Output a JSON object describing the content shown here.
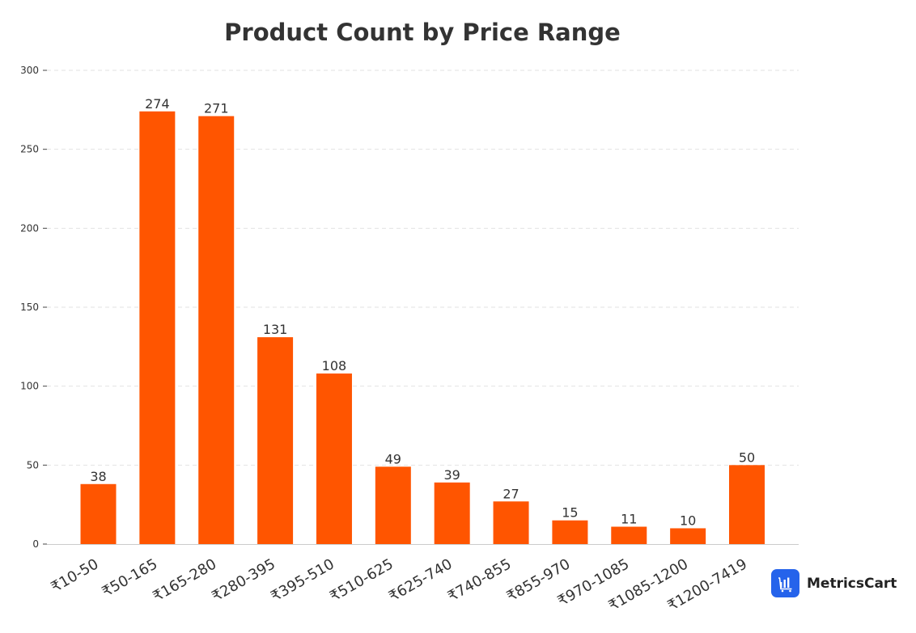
{
  "chart_data": {
    "type": "bar",
    "title": "Product Count by Price Range",
    "xlabel": "",
    "ylabel": "",
    "categories": [
      "₹10-50",
      "₹50-165",
      "₹165-280",
      "₹280-395",
      "₹395-510",
      "₹510-625",
      "₹625-740",
      "₹740-855",
      "₹855-970",
      "₹970-1085",
      "₹1085-1200",
      "₹1200-7419"
    ],
    "values": [
      38,
      274,
      271,
      131,
      108,
      49,
      39,
      27,
      15,
      11,
      10,
      50
    ],
    "ylim": [
      0,
      300
    ],
    "yticks": [
      0,
      50,
      100,
      150,
      200,
      250,
      300
    ],
    "grid": true,
    "bar_color": "#ff5500"
  },
  "brand": {
    "name": "MetricsCart",
    "icon": "bar-chart-cart-icon",
    "color": "#2563eb"
  }
}
